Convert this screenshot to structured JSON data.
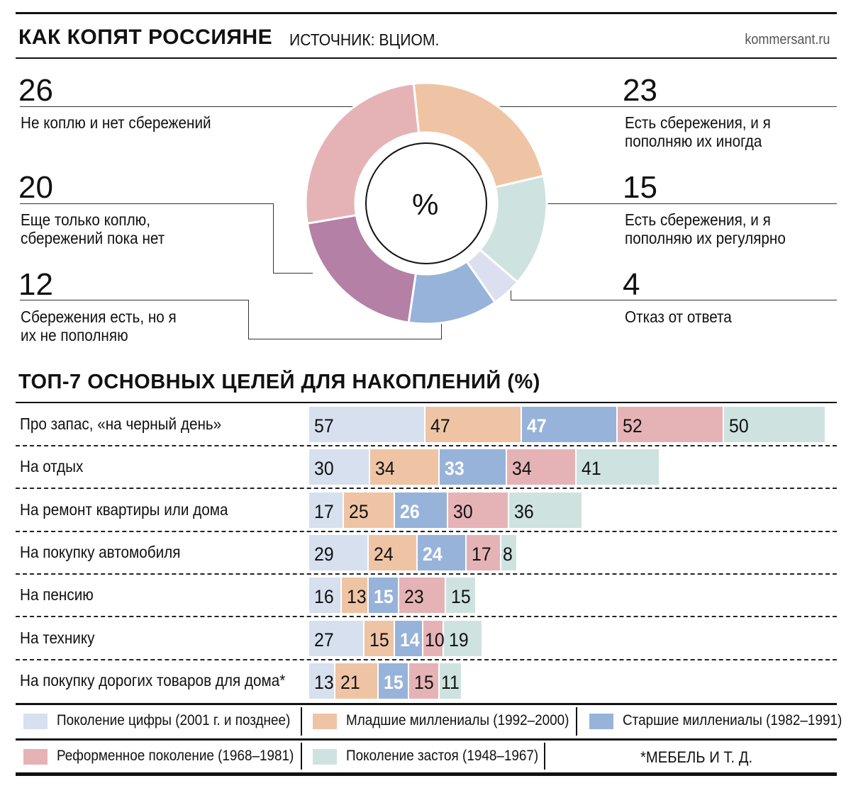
{
  "header": {
    "title": "КАК КОПЯТ РОССИЯНЕ",
    "source": "ИСТОЧНИК: ВЦИОМ.",
    "site": "kommersant.ru"
  },
  "chart_data": [
    {
      "type": "pie",
      "center_label": "%",
      "slices": [
        {
          "label": "Есть сбережения, и я пополняю их иногда",
          "value": 23,
          "color": "#eec4a5"
        },
        {
          "label": "Есть сбережения, и я пополняю их регулярно",
          "value": 15,
          "color": "#cee3e0"
        },
        {
          "label": "Отказ от ответа",
          "value": 4,
          "color": "#dcdfef"
        },
        {
          "label": "Сбережения есть, но я их не пополняю",
          "value": 12,
          "color": "#97b3da"
        },
        {
          "label": "Еще только коплю, сбережений пока нет",
          "value": 20,
          "color": "#b480a5"
        },
        {
          "label": "Не коплю и нет сбережений",
          "value": 26,
          "color": "#e5b3b6"
        }
      ]
    },
    {
      "type": "bar",
      "stacked": true,
      "title": "ТОП-7 ОСНОВНЫХ ЦЕЛЕЙ ДЛЯ НАКОПЛЕНИЙ (%)",
      "categories": [
        "Про запас, «на черный день»",
        "На отдых",
        "На ремонт квартиры или дома",
        "На покупку автомобиля",
        "На пенсию",
        "На технику",
        "На покупку дорогих товаров для дома*"
      ],
      "series": [
        {
          "name": "Поколение цифры (2001 г. и позднее)",
          "color": "#d6e0ee",
          "values": [
            57,
            30,
            17,
            29,
            16,
            27,
            13
          ]
        },
        {
          "name": "Младшие миллениалы (1992–2000)",
          "color": "#eec4a5",
          "values": [
            47,
            34,
            25,
            24,
            13,
            15,
            21
          ]
        },
        {
          "name": "Старшие миллениалы (1982–1991)",
          "color": "#97b3da",
          "values": [
            47,
            33,
            26,
            24,
            15,
            14,
            15
          ]
        },
        {
          "name": "Реформенное поколение (1968–1981)",
          "color": "#e5b3b6",
          "values": [
            52,
            34,
            30,
            17,
            23,
            10,
            15
          ]
        },
        {
          "name": "Поколение застоя (1948–1967)",
          "color": "#cee3e0",
          "values": [
            50,
            41,
            36,
            8,
            15,
            19,
            11
          ]
        }
      ],
      "footnote": "*МЕБЕЛЬ И Т. Д."
    }
  ]
}
